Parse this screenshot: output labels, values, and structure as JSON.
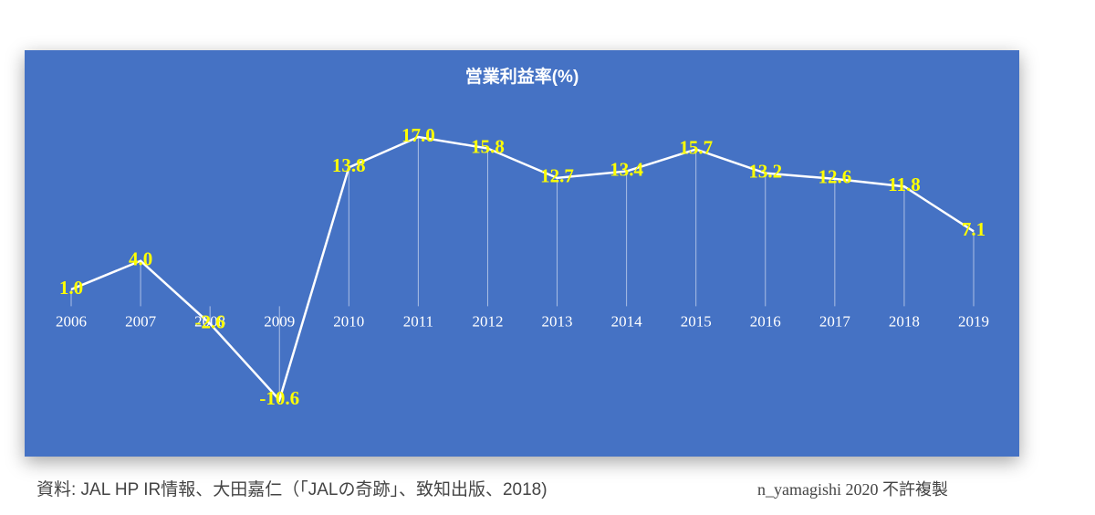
{
  "chart_data": {
    "type": "line",
    "title": "営業利益率(%)",
    "categories": [
      "2006",
      "2007",
      "2008",
      "2009",
      "2010",
      "2011",
      "2012",
      "2013",
      "2014",
      "2015",
      "2016",
      "2017",
      "2018",
      "2019"
    ],
    "values": [
      1.0,
      4.0,
      -2.6,
      -10.6,
      13.8,
      17.0,
      15.8,
      12.7,
      13.4,
      15.7,
      13.2,
      12.6,
      11.8,
      7.1
    ],
    "value_labels": [
      "1.0",
      "4.0",
      "-2.6",
      "-10.6",
      "13.8",
      "17.0",
      "15.8",
      "12.7",
      "13.4",
      "15.7",
      "13.2",
      "12.6",
      "11.8",
      "7.1"
    ],
    "color": "#ffffff",
    "label_color": "#ffff00",
    "background": "#4472c4"
  },
  "footer": {
    "source": "資料: JAL HP IR情報、大田嘉仁（「JALの奇跡」、致知出版、2018)",
    "credit": "n_yamagishi 2020 不許複製"
  }
}
